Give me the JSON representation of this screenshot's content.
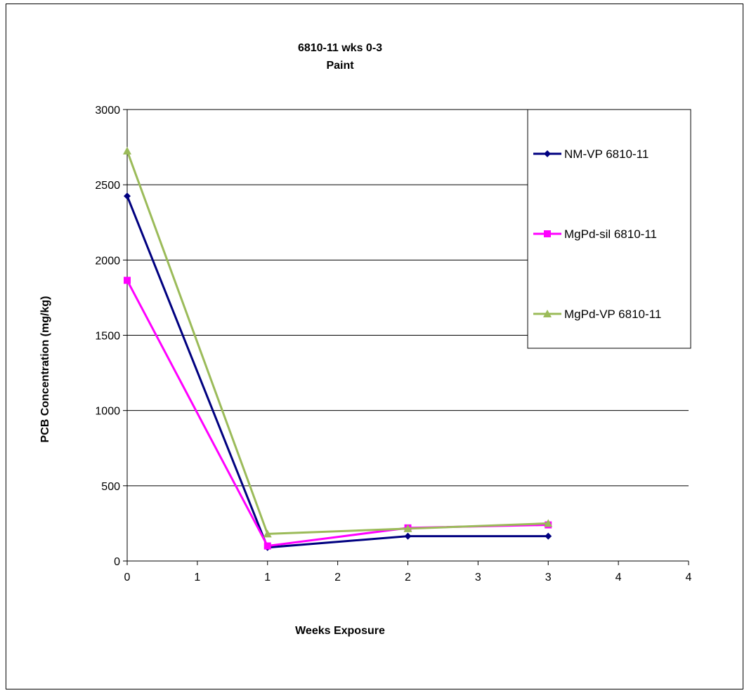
{
  "chart_data": {
    "type": "line",
    "title": "6810-11 wks 0-3",
    "subtitle": "Paint",
    "xlabel": "Weeks Exposure",
    "ylabel": "PCB Concentration (mg/kg)",
    "x": [
      0,
      1,
      2,
      3
    ],
    "xlim": [
      0,
      4
    ],
    "ylim": [
      0,
      3000
    ],
    "y_ticks": [
      0,
      500,
      1000,
      1500,
      2000,
      2500,
      3000
    ],
    "x_tick_labels": [
      "0",
      "1",
      "1",
      "2",
      "2",
      "3",
      "3",
      "4",
      "4"
    ],
    "grid": "horizontal",
    "legend_position": "right",
    "series": [
      {
        "name": "NM-VP 6810-11",
        "values": [
          2425,
          90,
          165,
          165
        ],
        "color": "#000080",
        "marker": "diamond"
      },
      {
        "name": "MgPd-sil 6810-11",
        "values": [
          1865,
          100,
          220,
          240
        ],
        "color": "#FF00FF",
        "marker": "square"
      },
      {
        "name": "MgPd-VP 6810-11",
        "values": [
          2725,
          180,
          215,
          250
        ],
        "color": "#9BBB59",
        "marker": "triangle"
      }
    ]
  }
}
